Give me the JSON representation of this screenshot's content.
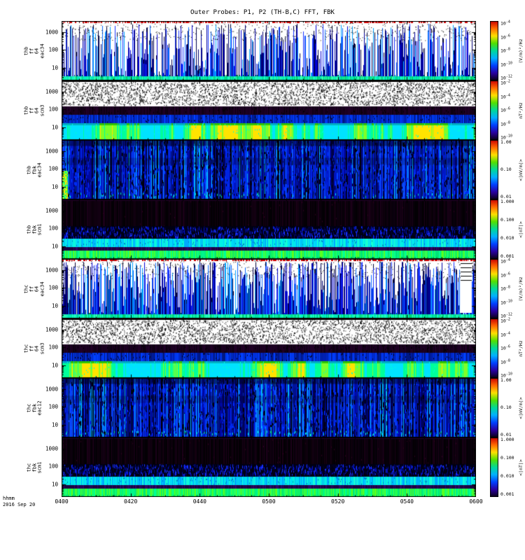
{
  "title": "Outer Probes: P1, P2 (TH-B,C) FFT, FBK",
  "footer": {
    "xlabel_unit": "hhmm",
    "date": "2016 Sep 20"
  },
  "colors": {
    "background": "#ffffff",
    "frame": "#000000",
    "colorbar_stops": [
      "#cc0000",
      "#ff6a00",
      "#ffe000",
      "#52e000",
      "#00d89a",
      "#00b0ff",
      "#0040ff",
      "#2a00a0",
      "#0a0014"
    ]
  },
  "chart_data": {
    "type": "heatmap",
    "title": "Outer Probes: P1, P2 (TH-B,C) FFT, FBK",
    "x_axis": {
      "label": "hhmm",
      "date": "2016 Sep 20",
      "ticks": [
        "0400",
        "0420",
        "0440",
        "0500",
        "0520",
        "0540",
        "0600"
      ],
      "minor_tick_minutes": 5
    },
    "y_axis": {
      "scale": "log",
      "ticks": [
        1000,
        100,
        10
      ],
      "range_hz": [
        2,
        4000
      ]
    },
    "panels": [
      {
        "id": "thb-ff-eac34",
        "label_lines": [
          "thb",
          "ff",
          "64",
          "eac34"
        ],
        "y_ticks": [
          1000,
          100,
          10
        ],
        "colorbar": {
          "unit": "(V/m)²/Hz",
          "ticks": [
            "10^-4",
            "10^-6",
            "10^-8",
            "10^-10",
            "10^-12"
          ]
        },
        "style": "efft",
        "seed": 11,
        "opts": {
          "density": 0.8,
          "tall": 1.3
        }
      },
      {
        "id": "thb-ff-scm3",
        "label_lines": [
          "thb",
          "ff",
          "64",
          "scm3"
        ],
        "y_ticks": [
          1000,
          100,
          10
        ],
        "colorbar": {
          "unit": "nT²/Hz",
          "ticks": [
            "10^-2",
            "10^-4",
            "10^-6",
            "10^-8",
            "10^-10"
          ]
        },
        "style": "bfft",
        "seed": 22,
        "opts": {}
      },
      {
        "id": "thb-fbk-eac34",
        "label_lines": [
          "thb",
          "fbk",
          "eac34"
        ],
        "y_ticks": [
          1000,
          100,
          10
        ],
        "colorbar": {
          "unit": "<|mV/m|>",
          "ticks": [
            "1.00",
            "0.10",
            "0.01"
          ]
        },
        "style": "efbk",
        "seed": 33,
        "opts": {
          "blob": true
        }
      },
      {
        "id": "thb-fbk-scm1",
        "label_lines": [
          "thb",
          "fbk",
          "scm1"
        ],
        "y_ticks": [
          1000,
          100,
          10
        ],
        "colorbar": {
          "unit": "<|nT|>",
          "ticks": [
            "1.000",
            "0.100",
            "0.010",
            "0.001"
          ]
        },
        "style": "bfbk",
        "seed": 44,
        "opts": {}
      },
      {
        "id": "thc-ff-eac34",
        "label_lines": [
          "thc",
          "ff",
          "64",
          "eac34"
        ],
        "y_ticks": [
          1000,
          100,
          10
        ],
        "colorbar": {
          "unit": "(V/m)²/Hz",
          "ticks": [
            "10^-4",
            "10^-6",
            "10^-8",
            "10^-10",
            "10^-12"
          ]
        },
        "style": "efft",
        "seed": 55,
        "opts": {
          "density": 0.96,
          "tall": 1.8,
          "gap": true
        }
      },
      {
        "id": "thc-ff-scm3",
        "label_lines": [
          "thc",
          "ff",
          "64",
          "scm3"
        ],
        "y_ticks": [
          1000,
          100,
          10
        ],
        "colorbar": {
          "unit": "nT²/Hz",
          "ticks": [
            "10^-2",
            "10^-4",
            "10^-6",
            "10^-8",
            "10^-10"
          ]
        },
        "style": "bfft",
        "seed": 66,
        "opts": {}
      },
      {
        "id": "thc-fbk-eac12",
        "label_lines": [
          "thc",
          "fbk",
          "eac12"
        ],
        "y_ticks": [
          1000,
          100,
          10
        ],
        "colorbar": {
          "unit": "<|mV/m|>",
          "ticks": [
            "1.00",
            "0.10",
            "0.01"
          ]
        },
        "style": "efbk",
        "seed": 77,
        "opts": {
          "blob": false
        }
      },
      {
        "id": "thc-fbk-scm1",
        "label_lines": [
          "thc",
          "fbk",
          "scm1"
        ],
        "y_ticks": [
          1000,
          100,
          10
        ],
        "colorbar": {
          "unit": "<|nT|>",
          "ticks": [
            "1.000",
            "0.100",
            "0.010",
            "0.001"
          ]
        },
        "style": "bfbk",
        "seed": 88,
        "opts": {}
      }
    ]
  }
}
